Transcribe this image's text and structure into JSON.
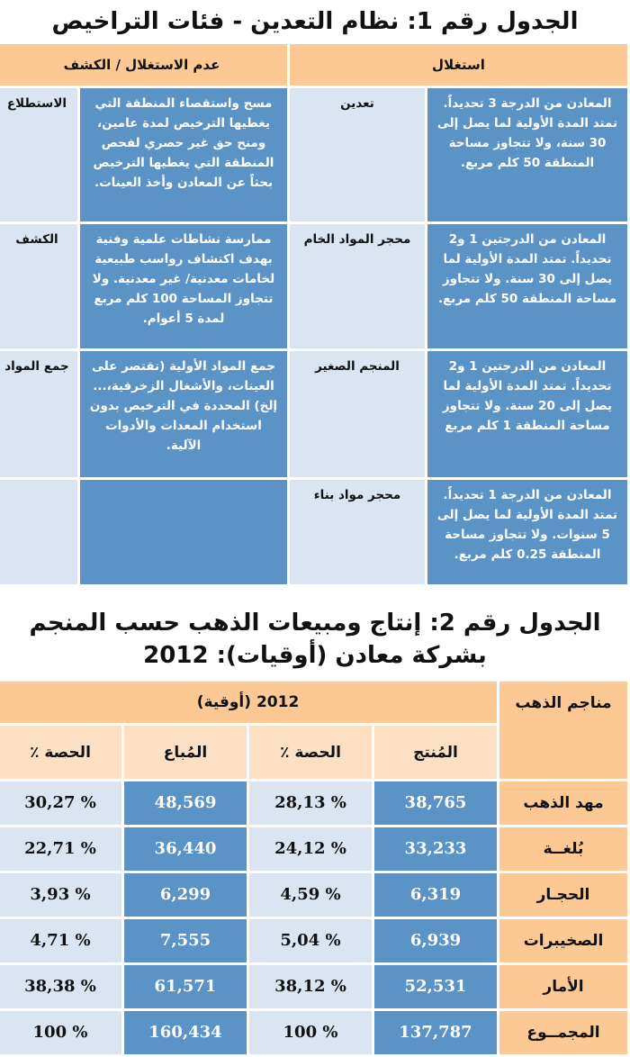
{
  "table1": {
    "title": "الجدول رقم 1: نظام التعدين - فئات التراخيص",
    "headers": [
      "استغلال",
      "عدم الاستغلال / الكشف"
    ],
    "rows": [
      {
        "exploit_desc": "المعادن من الدرجة 3 تحديداً. تمتد المدة الأولية لما يصل إلى 30 سنة، ولا تتجاوز مساحة المنطقة 50 كلم مربع.",
        "exploit_type": "تعدين",
        "explore_desc": "مسح واستقصاء المنطقة التي يغطيها الترخيص لمدة عامين، ومنح حق غير حصري لفحص المنطقة التي يغطيها الترخيص بحثاً عن المعادن وأخذ العينات.",
        "explore_type": "الاستطلاع"
      },
      {
        "exploit_desc": "المعادن من الدرجتين 1 و2 تحديداً. تمتد المدة الأولية لما يصل إلى 30 سنة. ولا تتجاوز مساحة المنطقة 50 كلم مربع.",
        "exploit_type": "محجر المواد الخام",
        "explore_desc": "ممارسة نشاطات علمية وفنية بهدف اكتشاف رواسب طبيعية لخامات معدنية/ غير معدنية. ولا تتجاوز المساحة 100 كلم مربع لمدة 5 أعوام.",
        "explore_type": "الكشف"
      },
      {
        "exploit_desc": "المعادن من الدرجتين 1 و2 تحديداً. تمتد المدة الأولية لما يصل إلى 20 سنة. ولا تتجاوز مساحة المنطقة 1 كلم مربع",
        "exploit_type": "المنجم الصغير",
        "explore_desc": "جمع المواد الأولية (تقتصر على العينات، والأشغال الزخرفية،... إلخ) المحددة في الترخيص بدون استخدام المعدات والأدوات الآلية.",
        "explore_type": "جمع المواد"
      },
      {
        "exploit_desc": "المعادن من الدرجة 1 تحديداً. تمتد المدة الأولية لما يصل إلى 5 سنوات. ولا تتجاوز مساحة المنطقة 0.25 كلم مربع.",
        "exploit_type": "محجر مواد بناء",
        "explore_desc": "",
        "explore_type": ""
      }
    ]
  },
  "table2": {
    "title_line1": "الجدول رقم 2: إنتاج ومبيعات الذهب حسب المنجم",
    "title_line2": "بشركة معادن (أوقيات): 2012",
    "row_header": "مناجم الذهب",
    "group_header": "2012 (أوقية)",
    "columns": [
      "المُنتج",
      "الحصة ٪",
      "المُباع",
      "الحصة ٪"
    ],
    "rows": [
      {
        "mine": "مهد الذهب",
        "produced": "38,765",
        "produced_share": "% 28,13",
        "sold": "48,569",
        "sold_share": "% 30,27"
      },
      {
        "mine": "بُلغــة",
        "produced": "33,233",
        "produced_share": "% 24,12",
        "sold": "36,440",
        "sold_share": "% 22,71"
      },
      {
        "mine": "الحجـار",
        "produced": "6,319",
        "produced_share": "% 4,59",
        "sold": "6,299",
        "sold_share": "% 3,93"
      },
      {
        "mine": "الصخيبرات",
        "produced": "6,939",
        "produced_share": "% 5,04",
        "sold": "7,555",
        "sold_share": "% 4,71"
      },
      {
        "mine": "الأمار",
        "produced": "52,531",
        "produced_share": "% 38,12",
        "sold": "61,571",
        "sold_share": "% 38,38"
      },
      {
        "mine": "المجمــوع",
        "produced": "137,787",
        "produced_share": "% 100",
        "sold": "160,434",
        "sold_share": "% 100"
      }
    ]
  },
  "colors": {
    "header": "#fcc994",
    "subheader": "#fde0c4",
    "dark_cell": "#5b93c6",
    "light_cell": "#dbe5f2"
  }
}
